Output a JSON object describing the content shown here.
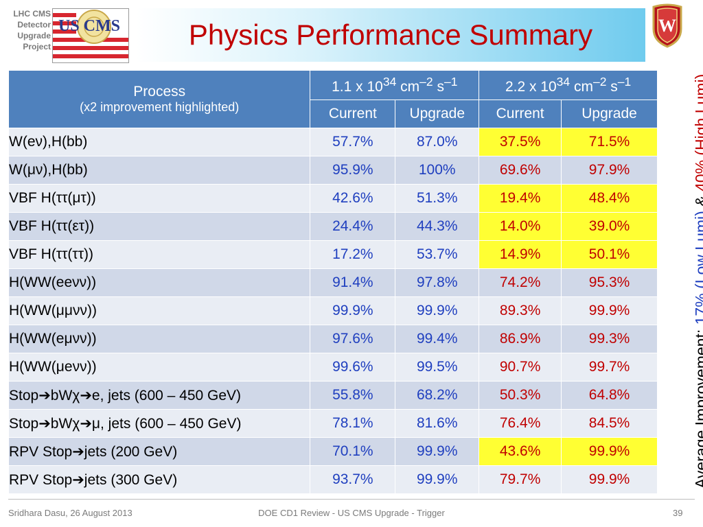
{
  "header": {
    "project_lines": [
      "LHC CMS",
      "Detector",
      "Upgrade",
      "Project"
    ],
    "logo_text": "US CMS",
    "title": "Physics Performance Summary"
  },
  "side_note": {
    "prefix": "Average Improvement: ",
    "low": "17% (Low Lumi)",
    "amp": " & ",
    "high": "40% (High Lumi)"
  },
  "table": {
    "process_header": "Process",
    "process_note": "(x2 improvement highlighted)",
    "groups": [
      {
        "pre": "1.1 x 10",
        "exp": "34",
        "unit": " cm",
        "unit_exp": "–2",
        "s": " s",
        "s_exp": "–1"
      },
      {
        "pre": "2.2 x 10",
        "exp": "34",
        "unit": " cm",
        "unit_exp": "–2",
        "s": " s",
        "s_exp": "–1"
      }
    ],
    "sub_headers": [
      "Current",
      "Upgrade",
      "Current",
      "Upgrade"
    ],
    "rows": [
      {
        "process": "W(eν),H(bb)",
        "values": [
          "57.7%",
          "87.0%",
          "37.5%",
          "71.5%"
        ],
        "highlight": true
      },
      {
        "process": "W(μν),H(bb)",
        "values": [
          "95.9%",
          "100%",
          "69.6%",
          "97.9%"
        ],
        "highlight": false
      },
      {
        "process": "VBF H(ττ(μτ))",
        "values": [
          "42.6%",
          "51.3%",
          "19.4%",
          "48.4%"
        ],
        "highlight": true
      },
      {
        "process": "VBF H(ττ(ετ))",
        "values": [
          "24.4%",
          "44.3%",
          "14.0%",
          "39.0%"
        ],
        "highlight": true
      },
      {
        "process": "VBF H(ττ(ττ))",
        "values": [
          "17.2%",
          "53.7%",
          "14.9%",
          "50.1%"
        ],
        "highlight": true
      },
      {
        "process": "H(WW(eeνν))",
        "values": [
          "91.4%",
          "97.8%",
          "74.2%",
          "95.3%"
        ],
        "highlight": false
      },
      {
        "process": "H(WW(μμνν))",
        "values": [
          "99.9%",
          "99.9%",
          "89.3%",
          "99.9%"
        ],
        "highlight": false
      },
      {
        "process": "H(WW(eμνν))",
        "values": [
          "97.6%",
          "99.4%",
          "86.9%",
          "99.3%"
        ],
        "highlight": false
      },
      {
        "process": "H(WW(μeνν))",
        "values": [
          "99.6%",
          "99.5%",
          "90.7%",
          "99.7%"
        ],
        "highlight": false
      },
      {
        "process": "Stop➔bWχ➔e, jets (600 – 450 GeV)",
        "values": [
          "55.8%",
          "68.2%",
          "50.3%",
          "64.8%"
        ],
        "highlight": false
      },
      {
        "process": "Stop➔bWχ➔μ, jets (600 – 450 GeV)",
        "values": [
          "78.1%",
          "81.6%",
          "76.4%",
          "84.5%"
        ],
        "highlight": false
      },
      {
        "process": "RPV Stop➔jets (200 GeV)",
        "values": [
          "70.1%",
          "99.9%",
          "43.6%",
          "99.9%"
        ],
        "highlight": true
      },
      {
        "process": "RPV Stop➔jets (300 GeV)",
        "values": [
          "93.7%",
          "99.9%",
          "79.7%",
          "99.9%"
        ],
        "highlight": false
      }
    ]
  },
  "footer": {
    "author": "Sridhara Dasu, 26 August 2013",
    "event": "DOE CD1 Review - US CMS Upgrade - Trigger",
    "page": "39"
  },
  "colors": {
    "title_red": "#c00000",
    "header_blue": "#4f81bd",
    "value_blue": "#1f3fbf",
    "value_red": "#c00000",
    "highlight_yellow": "#ffff33"
  },
  "icons": {
    "cms_logo": "us-cms-flag-logo",
    "university_logo": "wisconsin-shield-crest"
  }
}
